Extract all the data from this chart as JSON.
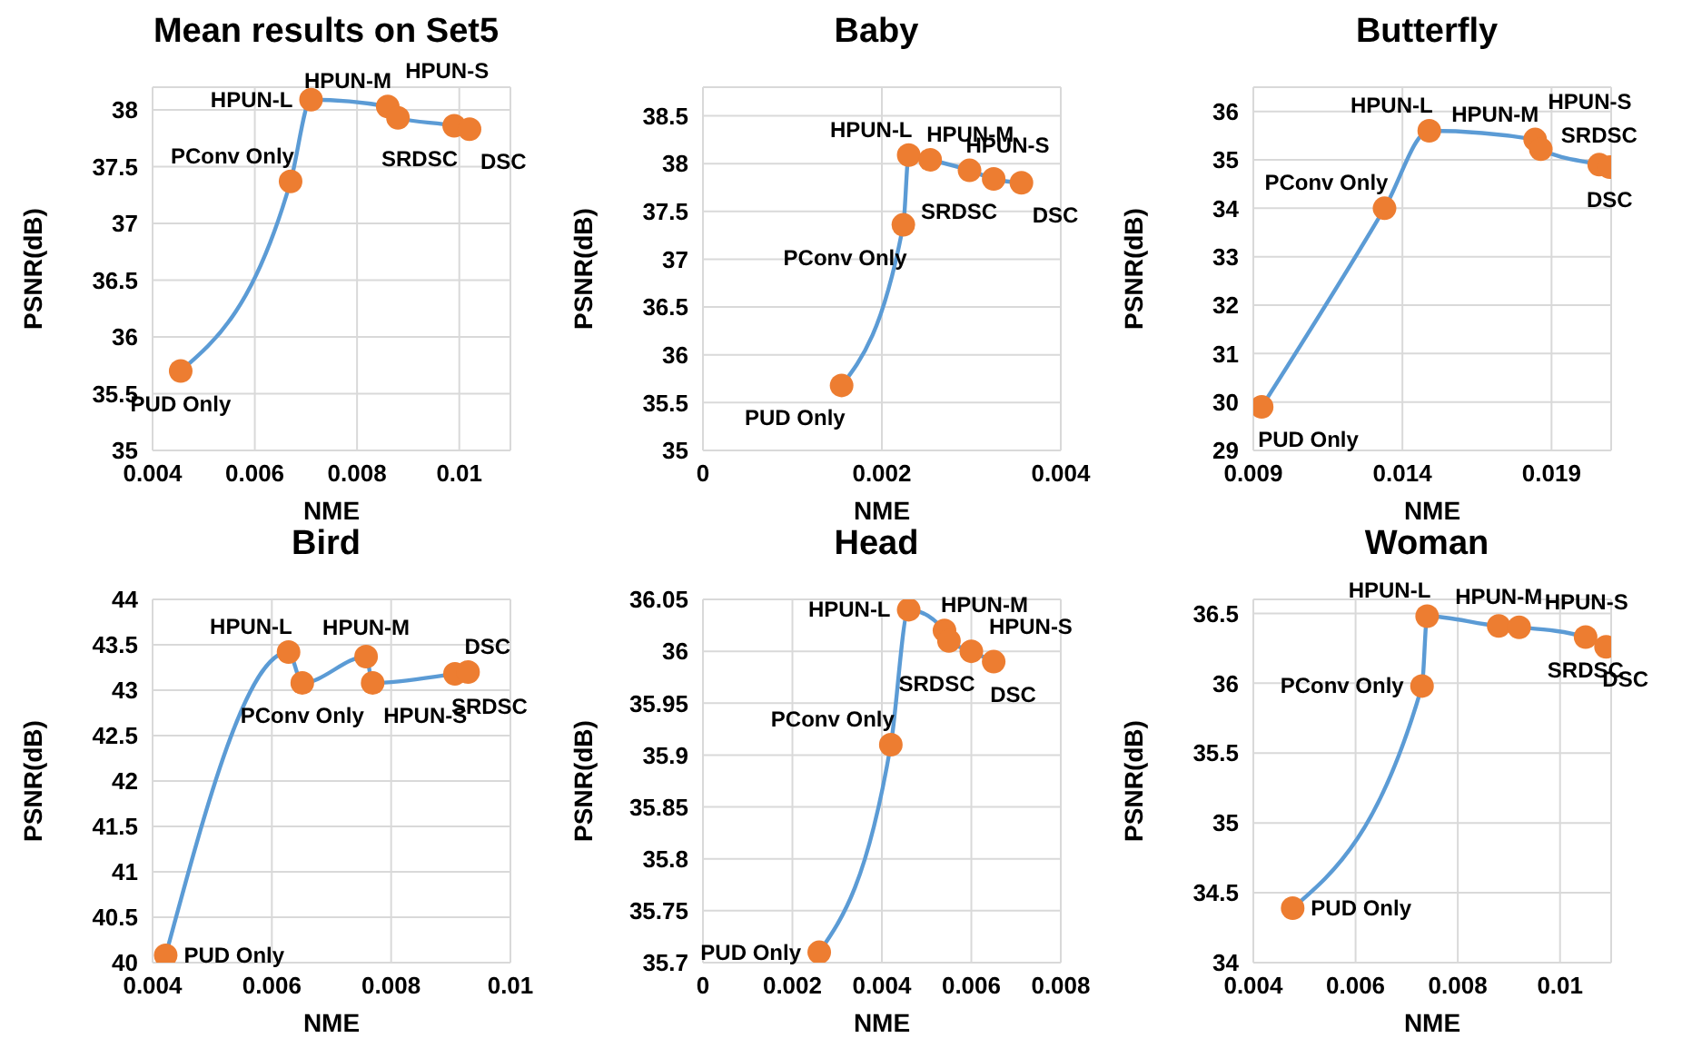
{
  "chart_data": [
    {
      "type": "line",
      "title": "Mean results on Set5",
      "xlabel": "NME",
      "ylabel": "PSNR(dB)",
      "xlim": [
        0.004,
        0.011
      ],
      "xticks": [
        0.004,
        0.006,
        0.008,
        0.01
      ],
      "ylim": [
        35,
        38.2
      ],
      "yticks": [
        35,
        35.5,
        36,
        36.5,
        37,
        37.5,
        38
      ],
      "grid": true,
      "marker": "circle",
      "x": [
        0.00455,
        0.0067,
        0.0071,
        0.0086,
        0.0088,
        0.0099,
        0.0102
      ],
      "series": [
        {
          "color": "#5b9bd5",
          "colors": [
            "#ed7d31",
            "#ed7d31",
            "#ed7d31",
            "#ed7d31",
            "#ed7d31",
            "#ed7d31",
            "#ed7d31"
          ],
          "values": [
            35.7,
            37.37,
            38.09,
            38.03,
            37.93,
            37.86,
            37.83
          ]
        }
      ],
      "annotations": [
        {
          "text": "PUD Only",
          "x": 0.00455,
          "y": 35.7
        },
        {
          "text": "PConv Only",
          "x": 0.0067,
          "y": 37.37
        },
        {
          "text": "HPUN-L",
          "x": 0.0071,
          "y": 38.09
        },
        {
          "text": "HPUN-M",
          "x": 0.0086,
          "y": 38.03
        },
        {
          "text": "HPUN-S",
          "x": 0.0088,
          "y": 37.93
        },
        {
          "text": "SRDSC",
          "x": 0.0099,
          "y": 37.86
        },
        {
          "text": "DSC",
          "x": 0.0102,
          "y": 37.83
        }
      ]
    },
    {
      "type": "line",
      "title": "Baby",
      "xlabel": "NME",
      "ylabel": "PSNR(dB)",
      "xlim": [
        0,
        0.004
      ],
      "xticks": [
        0,
        0.002,
        0.004
      ],
      "ylim": [
        35,
        38.8
      ],
      "yticks": [
        35,
        35.5,
        36,
        36.5,
        37,
        37.5,
        38,
        38.5
      ],
      "grid": true,
      "marker": "circle",
      "x": [
        0.00155,
        0.00224,
        0.0023,
        0.00254,
        0.00298,
        0.00325,
        0.00356
      ],
      "series": [
        {
          "color": "#5b9bd5",
          "colors": [
            "#ed7d31",
            "#ed7d31",
            "#ed7d31",
            "#ed7d31",
            "#ed7d31",
            "#ed7d31",
            "#ed7d31"
          ],
          "values": [
            35.68,
            37.36,
            38.09,
            38.04,
            37.93,
            37.84,
            37.8
          ]
        }
      ],
      "annotations": [
        {
          "text": "PUD Only",
          "x": 0.00155,
          "y": 35.68
        },
        {
          "text": "PConv Only",
          "x": 0.00224,
          "y": 37.36
        },
        {
          "text": "HPUN-L",
          "x": 0.0023,
          "y": 38.09
        },
        {
          "text": "HPUN-M",
          "x": 0.00254,
          "y": 38.04
        },
        {
          "text": "HPUN-S",
          "x": 0.00298,
          "y": 37.93
        },
        {
          "text": "SRDSC",
          "x": 0.00325,
          "y": 37.84
        },
        {
          "text": "DSC",
          "x": 0.00356,
          "y": 37.8
        }
      ]
    },
    {
      "type": "line",
      "title": "Butterfly",
      "xlabel": "NME",
      "ylabel": "PSNR(dB)",
      "xlim": [
        0.009,
        0.021
      ],
      "xticks": [
        0.009,
        0.014,
        0.019
      ],
      "ylim": [
        29,
        36.5
      ],
      "yticks": [
        29,
        30,
        31,
        32,
        33,
        34,
        35,
        36
      ],
      "grid": true,
      "marker": "circle",
      "x": [
        0.00928,
        0.0134,
        0.0149,
        0.01845,
        0.01864,
        0.0206,
        0.02095
      ],
      "series": [
        {
          "color": "#5b9bd5",
          "colors": [
            "#ed7d31",
            "#ed7d31",
            "#ed7d31",
            "#ed7d31",
            "#ed7d31",
            "#ed7d31",
            "#ed7d31"
          ],
          "values": [
            29.9,
            34.0,
            35.6,
            35.42,
            35.22,
            34.9,
            34.85
          ]
        }
      ],
      "annotations": [
        {
          "text": "PUD Only",
          "x": 0.00928,
          "y": 29.9
        },
        {
          "text": "PConv Only",
          "x": 0.0134,
          "y": 34.0
        },
        {
          "text": "HPUN-L",
          "x": 0.0149,
          "y": 35.6
        },
        {
          "text": "HPUN-M",
          "x": 0.01845,
          "y": 35.42
        },
        {
          "text": "HPUN-S",
          "x": 0.01864,
          "y": 35.22
        },
        {
          "text": "SRDSC",
          "x": 0.0206,
          "y": 34.9
        },
        {
          "text": "DSC",
          "x": 0.02095,
          "y": 34.85
        }
      ]
    },
    {
      "type": "line",
      "title": "Bird",
      "xlabel": "NME",
      "ylabel": "PSNR(dB)",
      "xlim": [
        0.004,
        0.01
      ],
      "xticks": [
        0.004,
        0.006,
        0.008,
        0.01
      ],
      "ylim": [
        40,
        44
      ],
      "yticks": [
        40,
        40.5,
        41,
        41.5,
        42,
        42.5,
        43,
        43.5,
        44
      ],
      "grid": true,
      "marker": "circle",
      "x": [
        0.00422,
        0.00628,
        0.00651,
        0.00758,
        0.00769,
        0.00907,
        0.00929
      ],
      "series": [
        {
          "color": "#5b9bd5",
          "colors": [
            "#ed7d31",
            "#ed7d31",
            "#ed7d31",
            "#ed7d31",
            "#ed7d31",
            "#ed7d31",
            "#ed7d31"
          ],
          "values": [
            40.08,
            43.42,
            43.08,
            43.37,
            43.08,
            43.18,
            43.2
          ]
        }
      ],
      "annotations": [
        {
          "text": "PUD Only",
          "x": 0.00422,
          "y": 40.08
        },
        {
          "text": "PConv Only",
          "x": 0.00651,
          "y": 43.08
        },
        {
          "text": "HPUN-L",
          "x": 0.00628,
          "y": 43.42
        },
        {
          "text": "HPUN-M",
          "x": 0.00758,
          "y": 43.37
        },
        {
          "text": "HPUN-S",
          "x": 0.00769,
          "y": 43.08
        },
        {
          "text": "SRDSC",
          "x": 0.00907,
          "y": 43.18
        },
        {
          "text": "DSC",
          "x": 0.00929,
          "y": 43.2
        }
      ]
    },
    {
      "type": "line",
      "title": "Head",
      "xlabel": "NME",
      "ylabel": "PSNR(dB)",
      "xlim": [
        0,
        0.008
      ],
      "xticks": [
        0,
        0.002,
        0.004,
        0.006,
        0.008
      ],
      "ylim": [
        35.7,
        36.05
      ],
      "yticks": [
        35.7,
        35.75,
        35.8,
        35.85,
        35.9,
        35.95,
        36,
        36.05
      ],
      "grid": true,
      "marker": "circle",
      "x": [
        0.0026,
        0.0042,
        0.0046,
        0.0054,
        0.0055,
        0.006,
        0.0065
      ],
      "series": [
        {
          "color": "#5b9bd5",
          "colors": [
            "#ed7d31",
            "#ed7d31",
            "#ed7d31",
            "#ed7d31",
            "#ed7d31",
            "#ed7d31",
            "#ed7d31"
          ],
          "values": [
            35.71,
            35.91,
            36.04,
            36.02,
            36.01,
            36.0,
            35.99
          ]
        }
      ],
      "annotations": [
        {
          "text": "PUD Only",
          "x": 0.0026,
          "y": 35.71
        },
        {
          "text": "PConv Only",
          "x": 0.0042,
          "y": 35.91
        },
        {
          "text": "HPUN-L",
          "x": 0.0046,
          "y": 36.04
        },
        {
          "text": "HPUN-M",
          "x": 0.0054,
          "y": 36.02
        },
        {
          "text": "HPUN-S",
          "x": 0.0055,
          "y": 36.01
        },
        {
          "text": "SRDSC",
          "x": 0.006,
          "y": 36.0
        },
        {
          "text": "DSC",
          "x": 0.0065,
          "y": 35.99
        }
      ]
    },
    {
      "type": "line",
      "title": "Woman",
      "xlabel": "NME",
      "ylabel": "PSNR(dB)",
      "xlim": [
        0.004,
        0.011
      ],
      "xticks": [
        0.004,
        0.006,
        0.008,
        0.01
      ],
      "ylim": [
        34,
        36.6
      ],
      "yticks": [
        34,
        34.5,
        35,
        35.5,
        36,
        36.5
      ],
      "grid": true,
      "marker": "circle",
      "x": [
        0.00477,
        0.0073,
        0.0074,
        0.0088,
        0.0092,
        0.0105,
        0.0109
      ],
      "series": [
        {
          "color": "#5b9bd5",
          "colors": [
            "#ed7d31",
            "#ed7d31",
            "#ed7d31",
            "#ed7d31",
            "#ed7d31",
            "#ed7d31",
            "#ed7d31"
          ],
          "values": [
            34.39,
            35.98,
            36.48,
            36.41,
            36.4,
            36.33,
            36.26
          ]
        }
      ],
      "annotations": [
        {
          "text": "PUD Only",
          "x": 0.00477,
          "y": 34.39
        },
        {
          "text": "PConv Only",
          "x": 0.0073,
          "y": 35.98
        },
        {
          "text": "HPUN-L",
          "x": 0.0074,
          "y": 36.48
        },
        {
          "text": "HPUN-M",
          "x": 0.0088,
          "y": 36.41
        },
        {
          "text": "HPUN-S",
          "x": 0.0092,
          "y": 36.4
        },
        {
          "text": "SRDSC",
          "x": 0.0105,
          "y": 36.33
        },
        {
          "text": "DSC",
          "x": 0.0109,
          "y": 36.26
        }
      ]
    }
  ]
}
